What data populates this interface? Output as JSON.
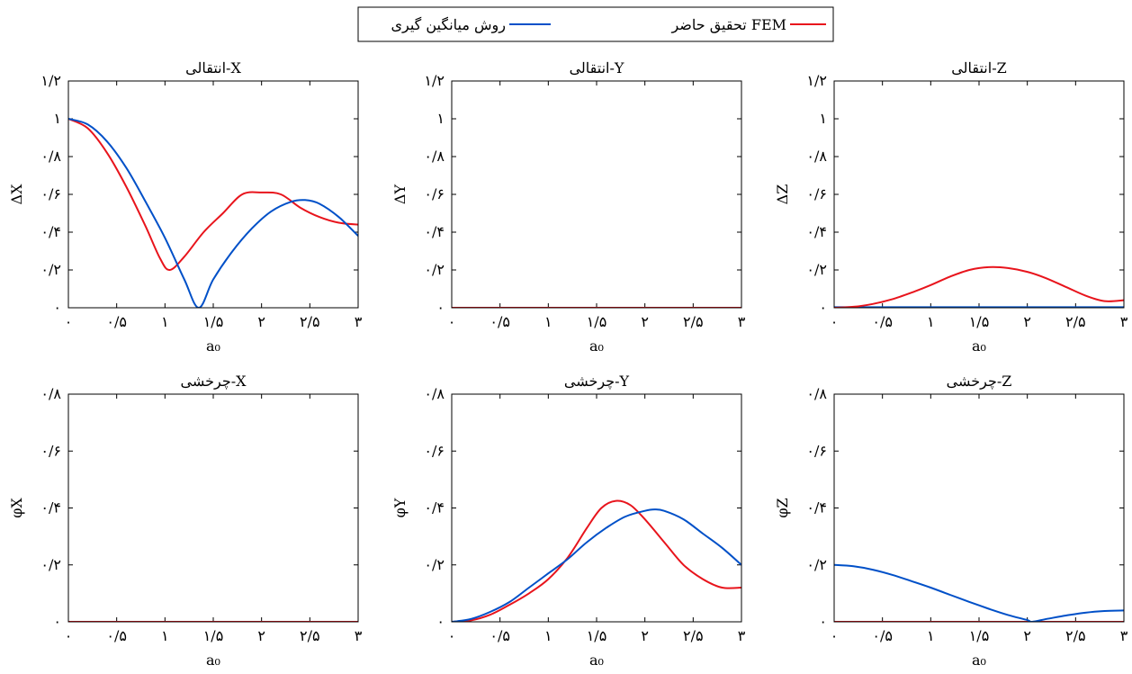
{
  "legend": {
    "items": [
      {
        "label": "تحقیق حاضر FEM",
        "color": "#e8141c"
      },
      {
        "label": "روش میانگین گیری",
        "color": "#0050c8"
      }
    ],
    "placement": "top-center"
  },
  "chart_data": [
    {
      "type": "line",
      "title": "انتقالی-X",
      "xlabel": "a₀",
      "ylabel": "ΔX",
      "xlim": [
        0,
        3
      ],
      "ylim": [
        0,
        1.2
      ],
      "xticks": [
        0,
        0.5,
        1,
        1.5,
        2,
        2.5,
        3
      ],
      "xtick_labels": [
        "۰",
        "۰/۵",
        "۱",
        "۱/۵",
        "۲",
        "۲/۵",
        "۳"
      ],
      "yticks": [
        0,
        0.2,
        0.4,
        0.6,
        0.8,
        1,
        1.2
      ],
      "ytick_labels": [
        "۰",
        "۰/۲",
        "۰/۴",
        "۰/۶",
        "۰/۸",
        "۱",
        "۱/۲"
      ],
      "series": [
        {
          "name": "تحقیق حاضر FEM",
          "color": "#e8141c",
          "x": [
            0,
            0.2,
            0.4,
            0.6,
            0.8,
            0.95,
            1.05,
            1.2,
            1.4,
            1.6,
            1.8,
            2.0,
            2.2,
            2.4,
            2.6,
            2.8,
            3.0
          ],
          "y": [
            1.0,
            0.95,
            0.82,
            0.64,
            0.43,
            0.26,
            0.2,
            0.27,
            0.4,
            0.5,
            0.6,
            0.61,
            0.6,
            0.53,
            0.48,
            0.45,
            0.44
          ]
        },
        {
          "name": "روش میانگین گیری",
          "color": "#0050c8",
          "x": [
            0,
            0.2,
            0.4,
            0.6,
            0.8,
            1.0,
            1.2,
            1.35,
            1.5,
            1.7,
            1.9,
            2.1,
            2.3,
            2.45,
            2.6,
            2.8,
            3.0
          ],
          "y": [
            1.0,
            0.97,
            0.88,
            0.74,
            0.56,
            0.37,
            0.15,
            0.0,
            0.15,
            0.3,
            0.42,
            0.51,
            0.56,
            0.57,
            0.55,
            0.48,
            0.38
          ]
        }
      ]
    },
    {
      "type": "line",
      "title": "انتقالی-Y",
      "xlabel": "a₀",
      "ylabel": "ΔY",
      "xlim": [
        0,
        3
      ],
      "ylim": [
        0,
        1.2
      ],
      "xticks": [
        0,
        0.5,
        1,
        1.5,
        2,
        2.5,
        3
      ],
      "xtick_labels": [
        "۰",
        "۰/۵",
        "۱",
        "۱/۵",
        "۲",
        "۲/۵",
        "۳"
      ],
      "yticks": [
        0,
        0.2,
        0.4,
        0.6,
        0.8,
        1,
        1.2
      ],
      "ytick_labels": [
        "۰",
        "۰/۲",
        "۰/۴",
        "۰/۶",
        "۰/۸",
        "۱",
        "۱/۲"
      ],
      "series": [
        {
          "name": "روش میانگین گیری",
          "color": "#0050c8",
          "x": [
            0,
            3
          ],
          "y": [
            0,
            0
          ]
        },
        {
          "name": "تحقیق حاضر FEM",
          "color": "#e8141c",
          "x": [
            0,
            3
          ],
          "y": [
            0,
            0
          ]
        }
      ]
    },
    {
      "type": "line",
      "title": "انتقالی-Z",
      "xlabel": "a₀",
      "ylabel": "ΔZ",
      "xlim": [
        0,
        3
      ],
      "ylim": [
        0,
        1.2
      ],
      "xticks": [
        0,
        0.5,
        1,
        1.5,
        2,
        2.5,
        3
      ],
      "xtick_labels": [
        "۰",
        "۰/۵",
        "۱",
        "۱/۵",
        "۲",
        "۲/۵",
        "۳"
      ],
      "yticks": [
        0,
        0.2,
        0.4,
        0.6,
        0.8,
        1,
        1.2
      ],
      "ytick_labels": [
        "۰",
        "۰/۲",
        "۰/۴",
        "۰/۶",
        "۰/۸",
        "۱",
        "۱/۲"
      ],
      "series": [
        {
          "name": "روش میانگین گیری",
          "color": "#0050c8",
          "x": [
            0,
            3
          ],
          "y": [
            0.003,
            0.003
          ]
        },
        {
          "name": "تحقیق حاضر FEM",
          "color": "#e8141c",
          "x": [
            0,
            0.2,
            0.4,
            0.6,
            0.8,
            1.0,
            1.2,
            1.4,
            1.6,
            1.8,
            2.0,
            2.2,
            2.4,
            2.6,
            2.8,
            3.0
          ],
          "y": [
            0.0,
            0.005,
            0.02,
            0.045,
            0.08,
            0.12,
            0.165,
            0.2,
            0.215,
            0.21,
            0.19,
            0.155,
            0.11,
            0.065,
            0.035,
            0.04
          ]
        }
      ]
    },
    {
      "type": "line",
      "title": "چرخشی-X",
      "xlabel": "a₀",
      "ylabel": "φX",
      "xlim": [
        0,
        3
      ],
      "ylim": [
        0,
        0.8
      ],
      "xticks": [
        0,
        0.5,
        1,
        1.5,
        2,
        2.5,
        3
      ],
      "xtick_labels": [
        "۰",
        "۰/۵",
        "۱",
        "۱/۵",
        "۲",
        "۲/۵",
        "۳"
      ],
      "yticks": [
        0,
        0.2,
        0.4,
        0.6,
        0.8
      ],
      "ytick_labels": [
        "۰",
        "۰/۲",
        "۰/۴",
        "۰/۶",
        "۰/۸"
      ],
      "series": [
        {
          "name": "روش میانگین گیری",
          "color": "#0050c8",
          "x": [
            0,
            3
          ],
          "y": [
            0,
            0
          ]
        },
        {
          "name": "تحقیق حاضر FEM",
          "color": "#e8141c",
          "x": [
            0,
            3
          ],
          "y": [
            0,
            0
          ]
        }
      ]
    },
    {
      "type": "line",
      "title": "چرخشی-Y",
      "xlabel": "a₀",
      "ylabel": "φY",
      "xlim": [
        0,
        3
      ],
      "ylim": [
        0,
        0.8
      ],
      "xticks": [
        0,
        0.5,
        1,
        1.5,
        2,
        2.5,
        3
      ],
      "xtick_labels": [
        "۰",
        "۰/۵",
        "۱",
        "۱/۵",
        "۲",
        "۲/۵",
        "۳"
      ],
      "yticks": [
        0,
        0.2,
        0.4,
        0.6,
        0.8
      ],
      "ytick_labels": [
        "۰",
        "۰/۲",
        "۰/۴",
        "۰/۶",
        "۰/۸"
      ],
      "series": [
        {
          "name": "تحقیق حاضر FEM",
          "color": "#e8141c",
          "x": [
            0,
            0.2,
            0.4,
            0.6,
            0.8,
            1.0,
            1.2,
            1.4,
            1.55,
            1.7,
            1.85,
            2.0,
            2.2,
            2.4,
            2.6,
            2.8,
            3.0
          ],
          "y": [
            0.0,
            0.005,
            0.025,
            0.06,
            0.1,
            0.15,
            0.225,
            0.33,
            0.4,
            0.425,
            0.41,
            0.36,
            0.28,
            0.2,
            0.15,
            0.12,
            0.12
          ]
        },
        {
          "name": "روش میانگین گیری",
          "color": "#0050c8",
          "x": [
            0,
            0.2,
            0.4,
            0.6,
            0.8,
            1.0,
            1.2,
            1.4,
            1.6,
            1.8,
            2.0,
            2.1,
            2.2,
            2.4,
            2.6,
            2.8,
            3.0
          ],
          "y": [
            0.0,
            0.01,
            0.035,
            0.07,
            0.12,
            0.17,
            0.22,
            0.28,
            0.33,
            0.37,
            0.39,
            0.395,
            0.39,
            0.36,
            0.31,
            0.26,
            0.2
          ]
        }
      ]
    },
    {
      "type": "line",
      "title": "چرخشی-Z",
      "xlabel": "a₀",
      "ylabel": "φZ",
      "xlim": [
        0,
        3
      ],
      "ylim": [
        0,
        0.8
      ],
      "xticks": [
        0,
        0.5,
        1,
        1.5,
        2,
        2.5,
        3
      ],
      "xtick_labels": [
        "۰",
        "۰/۵",
        "۱",
        "۱/۵",
        "۲",
        "۲/۵",
        "۳"
      ],
      "yticks": [
        0,
        0.2,
        0.4,
        0.6,
        0.8
      ],
      "ytick_labels": [
        "۰",
        "۰/۲",
        "۰/۴",
        "۰/۶",
        "۰/۸"
      ],
      "series": [
        {
          "name": "تحقیق حاضر FEM",
          "color": "#e8141c",
          "x": [
            0,
            3
          ],
          "y": [
            0,
            0
          ]
        },
        {
          "name": "روش میانگین گیری",
          "color": "#0050c8",
          "x": [
            0,
            0.2,
            0.4,
            0.6,
            0.8,
            1.0,
            1.2,
            1.4,
            1.6,
            1.8,
            2.0,
            2.05,
            2.2,
            2.4,
            2.6,
            2.8,
            3.0
          ],
          "y": [
            0.2,
            0.195,
            0.183,
            0.165,
            0.143,
            0.12,
            0.095,
            0.07,
            0.046,
            0.024,
            0.006,
            0.0,
            0.01,
            0.022,
            0.032,
            0.038,
            0.04
          ]
        }
      ]
    }
  ]
}
